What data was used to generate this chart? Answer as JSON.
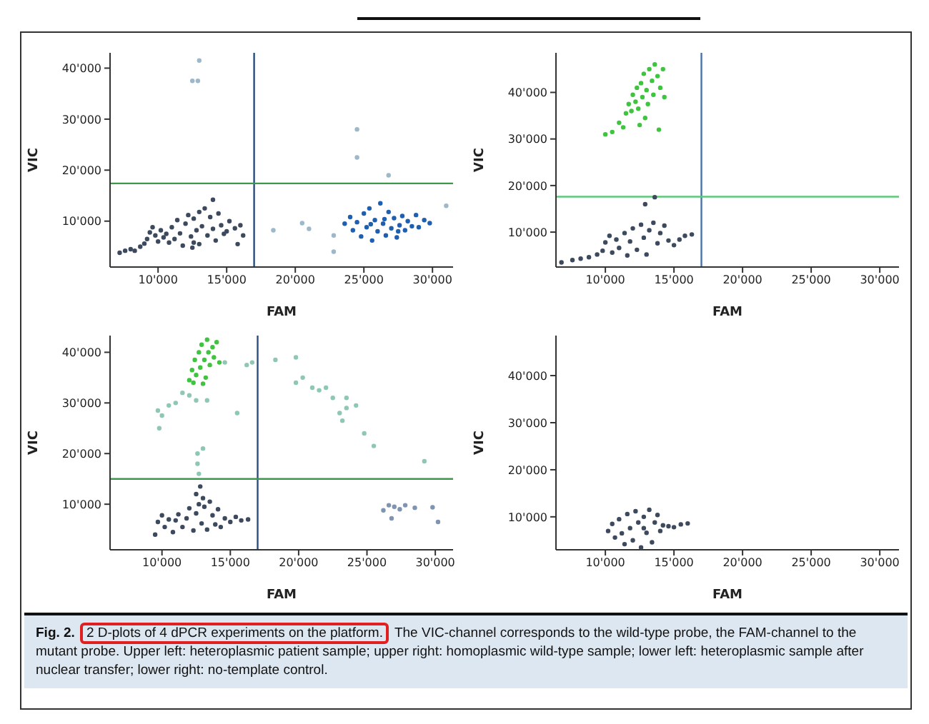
{
  "chart_data": [
    {
      "type": "scatter",
      "xlabel": "FAM",
      "ylabel": "VIC",
      "marker": "circle",
      "grid": false,
      "legend": false,
      "xlim": [
        6500,
        31500
      ],
      "ylim": [
        1000,
        43000
      ],
      "xticks": [
        {
          "value": 10000,
          "label": "10'000"
        },
        {
          "value": 15000,
          "label": "15'000"
        },
        {
          "value": 20000,
          "label": "20'000"
        },
        {
          "value": 25000,
          "label": "25'000"
        },
        {
          "value": 30000,
          "label": "30'000"
        }
      ],
      "yticks": [
        {
          "value": 10000,
          "label": "10'000"
        },
        {
          "value": 20000,
          "label": "20'000"
        },
        {
          "value": 30000,
          "label": "30'000"
        },
        {
          "value": 40000,
          "label": "40'000"
        }
      ],
      "ref_lines": [
        {
          "axis": "x",
          "value": 17000,
          "color": "#2b4d7e"
        },
        {
          "axis": "y",
          "value": 17400,
          "color": "#3a9a4a"
        }
      ],
      "annotations": [
        "Fig. 2.",
        "2 D-plots of 4 dPCR experiments on the platform.",
        "The VIC-channel corresponds to the wild-type probe, the FAM-channel to the mutant probe. Upper left: heteroplasmic patient sample; upper right: homoplasmic wild-type sample; lower left: heteroplasmic sample after nuclear transfer; lower right: no-template control."
      ],
      "series": [
        {
          "color": "#3d4a5e",
          "x": [
            7200,
            7600,
            8000,
            8300,
            8700,
            9000,
            9200,
            9400,
            9600,
            9800,
            10000,
            10200,
            10400,
            10600,
            10800,
            11000,
            11200,
            11400,
            11600,
            11800,
            12000,
            12200,
            12400,
            12500,
            12600,
            12800,
            13000,
            13000,
            13200,
            13400,
            13600,
            13800,
            14000,
            14200,
            14400,
            14600,
            14800,
            15000,
            15200,
            15600,
            16000,
            16200,
            15800,
            14000,
            12600
          ],
          "values": [
            3800,
            4200,
            4500,
            4200,
            5000,
            5600,
            6500,
            7800,
            8800,
            7200,
            6000,
            8200,
            6800,
            7500,
            5800,
            8800,
            6500,
            10200,
            7600,
            5200,
            9500,
            11200,
            7000,
            4800,
            10500,
            8200,
            11800,
            5500,
            9000,
            12500,
            7200,
            10800,
            8500,
            6200,
            11500,
            9200,
            7500,
            8000,
            10000,
            8600,
            9200,
            7200,
            5500,
            14200,
            5800
          ]
        },
        {
          "color": "#1f5fb0",
          "x": [
            23600,
            24000,
            24200,
            24500,
            24800,
            25000,
            25200,
            25400,
            25600,
            25800,
            26000,
            26200,
            26400,
            26600,
            26800,
            27000,
            27200,
            27400,
            27600,
            27800,
            28000,
            28200,
            28500,
            28800,
            29000,
            29400,
            29800,
            25500,
            26500,
            27500
          ],
          "values": [
            9500,
            10800,
            8200,
            9800,
            7000,
            11500,
            8800,
            12500,
            6200,
            10200,
            8000,
            13500,
            9500,
            7200,
            11800,
            8600,
            10600,
            6800,
            9200,
            11000,
            8200,
            10000,
            9000,
            11200,
            8800,
            10200,
            9600,
            9400,
            10400,
            8000
          ]
        },
        {
          "color": "#9db8c8",
          "x": [
            12500,
            12900,
            13000,
            24500,
            24500,
            26800,
            18400,
            20500,
            21000,
            22800,
            22800,
            31000
          ],
          "values": [
            37500,
            37500,
            41500,
            28000,
            22500,
            19000,
            8200,
            9600,
            8500,
            4000,
            7200,
            13000
          ]
        }
      ]
    },
    {
      "type": "scatter",
      "xlabel": "FAM",
      "ylabel": "VIC",
      "marker": "circle",
      "grid": false,
      "legend": false,
      "xlim": [
        6400,
        31400
      ],
      "ylim": [
        2500,
        48500
      ],
      "xticks": [
        {
          "value": 10000,
          "label": "10'000"
        },
        {
          "value": 15000,
          "label": "15'000"
        },
        {
          "value": 20000,
          "label": "20'000"
        },
        {
          "value": 25000,
          "label": "25'000"
        },
        {
          "value": 30000,
          "label": "30'000"
        }
      ],
      "yticks": [
        {
          "value": 10000,
          "label": "10'000"
        },
        {
          "value": 20000,
          "label": "20'000"
        },
        {
          "value": 30000,
          "label": "30'000"
        },
        {
          "value": 40000,
          "label": "40'000"
        }
      ],
      "ref_lines": [
        {
          "axis": "x",
          "value": 17000,
          "color": "#4a72a8"
        },
        {
          "axis": "y",
          "value": 17600,
          "color": "#5cc87a"
        }
      ],
      "series": [
        {
          "color": "#3ec43e",
          "x": [
            10000,
            10500,
            11000,
            11300,
            11500,
            11700,
            11900,
            12000,
            12200,
            12300,
            12400,
            12600,
            12700,
            12800,
            13000,
            13100,
            13200,
            13400,
            13500,
            13600,
            13800,
            14000,
            14200,
            14300,
            13900,
            12900,
            12500
          ],
          "values": [
            31000,
            31500,
            33500,
            32500,
            35500,
            37500,
            36000,
            39500,
            38000,
            41000,
            36500,
            42000,
            39000,
            44000,
            40500,
            37500,
            45000,
            42500,
            39500,
            46000,
            43500,
            41000,
            45000,
            39000,
            32000,
            34500,
            33000
          ]
        },
        {
          "color": "#3d4a5e",
          "x": [
            6800,
            7600,
            8200,
            8800,
            9400,
            9800,
            10000,
            10300,
            10500,
            10800,
            11000,
            11400,
            11600,
            11800,
            12000,
            12300,
            12600,
            12800,
            13000,
            13200,
            13500,
            13800,
            14000,
            14300,
            14600,
            15000,
            15400,
            15800,
            16300,
            12900,
            13600
          ],
          "values": [
            3500,
            4000,
            4300,
            4600,
            5200,
            6000,
            7800,
            9200,
            5600,
            8400,
            6600,
            9800,
            5000,
            8000,
            10800,
            6200,
            11600,
            8800,
            5200,
            10400,
            12000,
            7600,
            9800,
            11400,
            8200,
            7200,
            8400,
            9200,
            9500,
            16000,
            17500
          ]
        }
      ]
    },
    {
      "type": "scatter",
      "xlabel": "FAM",
      "ylabel": "VIC",
      "marker": "circle",
      "grid": false,
      "legend": false,
      "xlim": [
        6200,
        31300
      ],
      "ylim": [
        1000,
        43300
      ],
      "xticks": [
        {
          "value": 10000,
          "label": "10'000"
        },
        {
          "value": 15000,
          "label": "15'000"
        },
        {
          "value": 20000,
          "label": "20'000"
        },
        {
          "value": 25000,
          "label": "25'000"
        },
        {
          "value": 30000,
          "label": "30'000"
        }
      ],
      "yticks": [
        {
          "value": 10000,
          "label": "10'000"
        },
        {
          "value": 20000,
          "label": "20'000"
        },
        {
          "value": 30000,
          "label": "30'000"
        },
        {
          "value": 40000,
          "label": "40'000"
        }
      ],
      "ref_lines": [
        {
          "axis": "x",
          "value": 17000,
          "color": "#2b4d7e"
        },
        {
          "axis": "y",
          "value": 15000,
          "color": "#3a9a4a"
        }
      ],
      "series": [
        {
          "color": "#3ec43e",
          "x": [
            12000,
            12200,
            12400,
            12500,
            12700,
            12800,
            12900,
            13100,
            13200,
            13300,
            13400,
            13500,
            13700,
            13800,
            14000,
            14200,
            13000,
            12300
          ],
          "values": [
            34500,
            36500,
            38500,
            35500,
            40000,
            37000,
            41500,
            38500,
            35000,
            42500,
            40000,
            37500,
            41000,
            39000,
            42000,
            38000,
            33800,
            34000
          ]
        },
        {
          "color": "#8ec8b4",
          "x": [
            9700,
            9800,
            10000,
            10500,
            11000,
            11500,
            12000,
            12500,
            13300,
            14600,
            15500,
            16200,
            16600,
            18300,
            19800,
            19800,
            20300,
            21000,
            21500,
            22000,
            22500,
            23000,
            23200,
            23500,
            23500,
            24200,
            24800,
            25500,
            29200,
            13000,
            12600,
            12600,
            12700
          ],
          "values": [
            28500,
            25000,
            27500,
            29500,
            30000,
            32000,
            31500,
            30500,
            30500,
            38000,
            28000,
            37500,
            38000,
            38500,
            39000,
            34000,
            35000,
            33000,
            32500,
            33000,
            31000,
            28000,
            26500,
            31000,
            29000,
            29500,
            24000,
            21500,
            18500,
            21000,
            20000,
            18000,
            16000
          ]
        },
        {
          "color": "#3d4a5e",
          "x": [
            9500,
            9700,
            10000,
            10200,
            10500,
            10800,
            11000,
            11200,
            11500,
            11800,
            12000,
            12300,
            12500,
            12700,
            12900,
            13100,
            13300,
            13500,
            13700,
            13900,
            14100,
            14300,
            14600,
            15000,
            15400,
            15800,
            16300,
            12500,
            12800,
            13000
          ],
          "values": [
            4000,
            6500,
            7800,
            5500,
            7000,
            4500,
            6800,
            8000,
            5500,
            7200,
            9200,
            4800,
            8200,
            10000,
            6200,
            9500,
            5000,
            10500,
            7800,
            6000,
            9000,
            5500,
            7200,
            6500,
            7500,
            6800,
            7000,
            12000,
            13500,
            11200
          ]
        },
        {
          "color": "#7f94b0",
          "x": [
            26200,
            26600,
            26800,
            27000,
            27400,
            27800,
            28500,
            29800,
            30200
          ],
          "values": [
            8800,
            9800,
            7200,
            9500,
            9000,
            9800,
            9300,
            9400,
            6500
          ]
        }
      ]
    },
    {
      "type": "scatter",
      "xlabel": "FAM",
      "ylabel": "VIC",
      "marker": "circle",
      "grid": false,
      "legend": false,
      "xlim": [
        6400,
        31400
      ],
      "ylim": [
        3000,
        48500
      ],
      "xticks": [
        {
          "value": 10000,
          "label": "10'000"
        },
        {
          "value": 15000,
          "label": "15'000"
        },
        {
          "value": 20000,
          "label": "20'000"
        },
        {
          "value": 25000,
          "label": "25'000"
        },
        {
          "value": 30000,
          "label": "30'000"
        }
      ],
      "yticks": [
        {
          "value": 10000,
          "label": "10'000"
        },
        {
          "value": 20000,
          "label": "20'000"
        },
        {
          "value": 30000,
          "label": "30'000"
        },
        {
          "value": 40000,
          "label": "40'000"
        }
      ],
      "series": [
        {
          "color": "#3d4a5e",
          "x": [
            10200,
            10500,
            10700,
            11000,
            11200,
            11400,
            11600,
            11800,
            12000,
            12200,
            12400,
            12600,
            12800,
            13000,
            13200,
            13400,
            13600,
            13800,
            14000,
            14200,
            14600,
            15000,
            15500,
            16000,
            12800
          ],
          "values": [
            7000,
            8500,
            5600,
            9500,
            6500,
            4200,
            10600,
            7600,
            5000,
            11200,
            8800,
            3500,
            10000,
            6600,
            11500,
            4600,
            8800,
            10400,
            7000,
            8200,
            8000,
            7800,
            8400,
            8600,
            7600
          ]
        }
      ]
    }
  ]
}
